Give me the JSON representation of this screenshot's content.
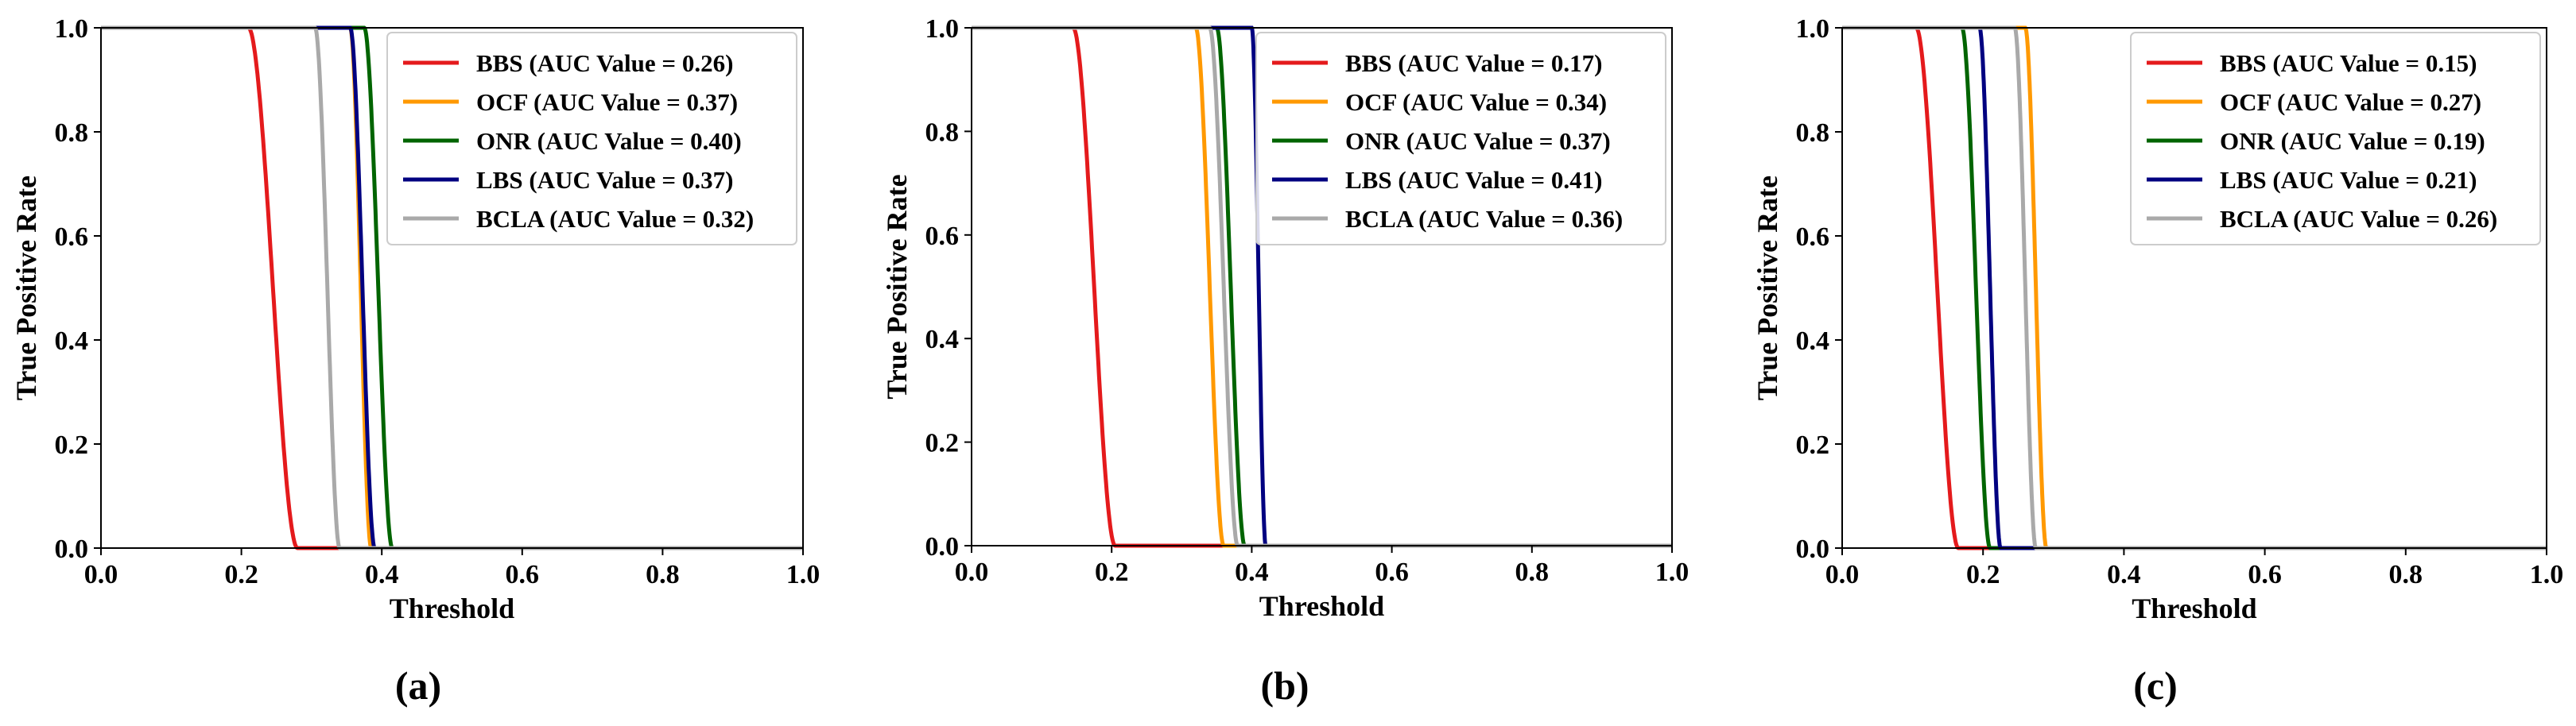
{
  "figure": {
    "panel_labels": [
      "(a)",
      "(b)",
      "(c)"
    ]
  },
  "colors": {
    "BBS": "#e41a1c",
    "OCF": "#ff9900",
    "ONR": "#006400",
    "LBS": "#000080",
    "BCLA": "#a9a9a9"
  },
  "chart_data": [
    {
      "type": "line",
      "panel_label": "(a)",
      "xlabel": "Threshold",
      "ylabel": "True Positive Rate",
      "xlim": [
        0.0,
        1.0
      ],
      "ylim": [
        0.0,
        1.0
      ],
      "xticks": [
        "0.0",
        "0.2",
        "0.4",
        "0.6",
        "0.8",
        "1.0"
      ],
      "yticks": [
        "0.0",
        "0.2",
        "0.4",
        "0.6",
        "0.8",
        "1.0"
      ],
      "legend_position": "top-right",
      "series": [
        {
          "name": "BBS",
          "label": "BBS (AUC Value = 0.26)",
          "auc": 0.26,
          "drop_start": 0.21,
          "drop_end": 0.28
        },
        {
          "name": "OCF",
          "label": "OCF (AUC Value = 0.37)",
          "auc": 0.37,
          "drop_start": 0.355,
          "drop_end": 0.385
        },
        {
          "name": "ONR",
          "label": "ONR (AUC Value = 0.40)",
          "auc": 0.4,
          "drop_start": 0.375,
          "drop_end": 0.415
        },
        {
          "name": "LBS",
          "label": "LBS (AUC Value = 0.37)",
          "auc": 0.37,
          "drop_start": 0.355,
          "drop_end": 0.39
        },
        {
          "name": "BCLA",
          "label": "BCLA (AUC Value = 0.32)",
          "auc": 0.32,
          "drop_start": 0.305,
          "drop_end": 0.34
        }
      ]
    },
    {
      "type": "line",
      "panel_label": "(b)",
      "xlabel": "Threshold",
      "ylabel": "True Positive Rate",
      "xlim": [
        0.0,
        1.0
      ],
      "ylim": [
        0.0,
        1.0
      ],
      "xticks": [
        "0.0",
        "0.2",
        "0.4",
        "0.6",
        "0.8",
        "1.0"
      ],
      "yticks": [
        "0.0",
        "0.2",
        "0.4",
        "0.6",
        "0.8",
        "1.0"
      ],
      "legend_position": "top-right",
      "series": [
        {
          "name": "BBS",
          "label": "BBS (AUC Value = 0.17)",
          "auc": 0.17,
          "drop_start": 0.145,
          "drop_end": 0.205
        },
        {
          "name": "OCF",
          "label": "OCF (AUC Value = 0.34)",
          "auc": 0.34,
          "drop_start": 0.32,
          "drop_end": 0.36
        },
        {
          "name": "ONR",
          "label": "ONR (AUC Value = 0.37)",
          "auc": 0.37,
          "drop_start": 0.35,
          "drop_end": 0.39
        },
        {
          "name": "LBS",
          "label": "LBS (AUC Value = 0.41)",
          "auc": 0.41,
          "drop_start": 0.4,
          "drop_end": 0.42
        },
        {
          "name": "BCLA",
          "label": "BCLA (AUC Value = 0.36)",
          "auc": 0.36,
          "drop_start": 0.34,
          "drop_end": 0.38
        }
      ]
    },
    {
      "type": "line",
      "panel_label": "(c)",
      "xlabel": "Threshold",
      "ylabel": "True Positive Rate",
      "xlim": [
        0.0,
        1.0
      ],
      "ylim": [
        0.0,
        1.0
      ],
      "xticks": [
        "0.0",
        "0.2",
        "0.4",
        "0.6",
        "0.8",
        "1.0"
      ],
      "yticks": [
        "0.0",
        "0.2",
        "0.4",
        "0.6",
        "0.8",
        "1.0"
      ],
      "legend_position": "top-right",
      "series": [
        {
          "name": "BBS",
          "label": "BBS (AUC Value = 0.15)",
          "auc": 0.15,
          "drop_start": 0.105,
          "drop_end": 0.165
        },
        {
          "name": "OCF",
          "label": "OCF (AUC Value = 0.27)",
          "auc": 0.27,
          "drop_start": 0.26,
          "drop_end": 0.29
        },
        {
          "name": "ONR",
          "label": "ONR (AUC Value = 0.19)",
          "auc": 0.19,
          "drop_start": 0.17,
          "drop_end": 0.21
        },
        {
          "name": "LBS",
          "label": "LBS (AUC Value = 0.21)",
          "auc": 0.21,
          "drop_start": 0.195,
          "drop_end": 0.225
        },
        {
          "name": "BCLA",
          "label": "BCLA (AUC Value = 0.26)",
          "auc": 0.26,
          "drop_start": 0.245,
          "drop_end": 0.275
        }
      ]
    }
  ]
}
